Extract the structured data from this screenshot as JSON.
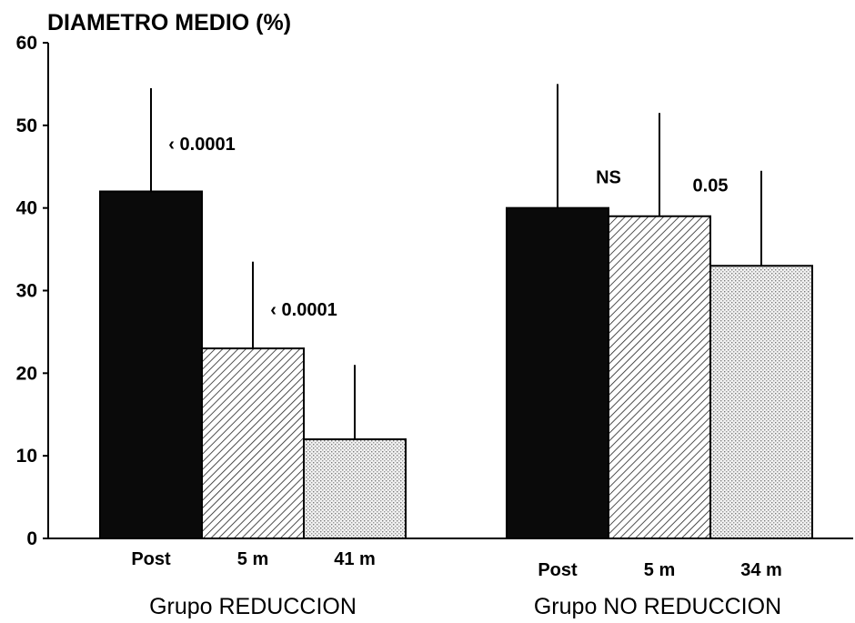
{
  "chart_data": {
    "type": "bar",
    "title": "",
    "ylabel": "DIAMETRO MEDIO (%)",
    "ylim": [
      0,
      60
    ],
    "yticks": [
      0,
      10,
      20,
      30,
      40,
      50,
      60
    ],
    "groups": [
      {
        "name": "Grupo REDUCCION",
        "bars": [
          {
            "label": "Post",
            "value": 42,
            "error_upper": 54.5,
            "pattern": "solid-black"
          },
          {
            "label": "5 m",
            "value": 23,
            "error_upper": 33.5,
            "pattern": "diagonal-hatch"
          },
          {
            "label": "41 m",
            "value": 12,
            "error_upper": 21,
            "pattern": "dots"
          }
        ]
      },
      {
        "name": "Grupo NO REDUCCION",
        "bars": [
          {
            "label": "Post",
            "value": 40,
            "error_upper": 55,
            "pattern": "solid-black"
          },
          {
            "label": "5 m",
            "value": 39,
            "error_upper": 51.5,
            "pattern": "diagonal-hatch"
          },
          {
            "label": "34 m",
            "value": 33,
            "error_upper": 44.5,
            "pattern": "dots"
          }
        ]
      }
    ],
    "annotations": [
      {
        "text": "‹ 0.0001",
        "group": 0,
        "between": [
          0,
          1
        ],
        "y": 47
      },
      {
        "text": "‹ 0.0001",
        "group": 0,
        "between": [
          1,
          2
        ],
        "y": 27
      },
      {
        "text": "NS",
        "group": 1,
        "between": [
          0,
          1
        ],
        "y": 43
      },
      {
        "text": "0.05",
        "group": 1,
        "between": [
          1,
          2
        ],
        "y": 42
      }
    ],
    "grid": false,
    "legend": "none",
    "colors": {
      "solid": "#0a0a0a",
      "hatch_bg": "#ffffff",
      "hatch_line": "#222222",
      "dots_bg": "#f2f2f2",
      "dots_dot": "#7a7a7a"
    }
  }
}
